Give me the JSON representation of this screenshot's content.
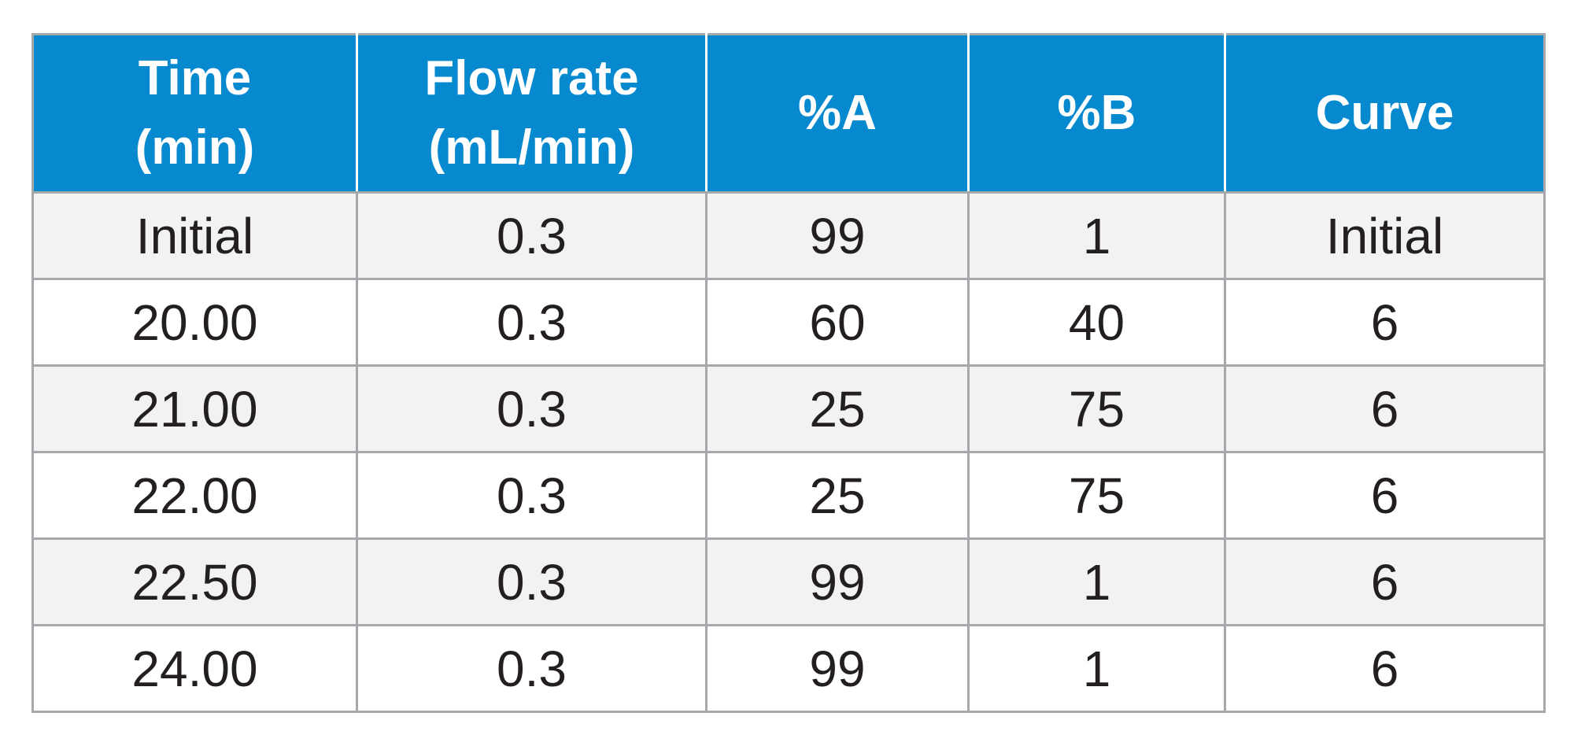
{
  "chart_data": {
    "type": "table",
    "columns": [
      {
        "key": "time",
        "label_lines": [
          "Time",
          "(min)"
        ]
      },
      {
        "key": "flow_rate",
        "label_lines": [
          "Flow rate",
          "(mL/min)"
        ]
      },
      {
        "key": "pct_a",
        "label_lines": [
          "%A"
        ]
      },
      {
        "key": "pct_b",
        "label_lines": [
          "%B"
        ]
      },
      {
        "key": "curve",
        "label_lines": [
          "Curve"
        ]
      }
    ],
    "rows": [
      [
        "Initial",
        "0.3",
        "99",
        "1",
        "Initial"
      ],
      [
        "20.00",
        "0.3",
        "60",
        "40",
        "6"
      ],
      [
        "21.00",
        "0.3",
        "25",
        "75",
        "6"
      ],
      [
        "22.00",
        "0.3",
        "25",
        "75",
        "6"
      ],
      [
        "22.50",
        "0.3",
        "99",
        "1",
        "6"
      ],
      [
        "24.00",
        "0.3",
        "99",
        "1",
        "6"
      ]
    ]
  },
  "colors": {
    "header_background": "#0789d0",
    "header_text": "#ffffff",
    "body_text": "#231f20",
    "row_shaded": "#f2f2f3",
    "row_plain": "#ffffff",
    "border": "#a6a8ab"
  }
}
